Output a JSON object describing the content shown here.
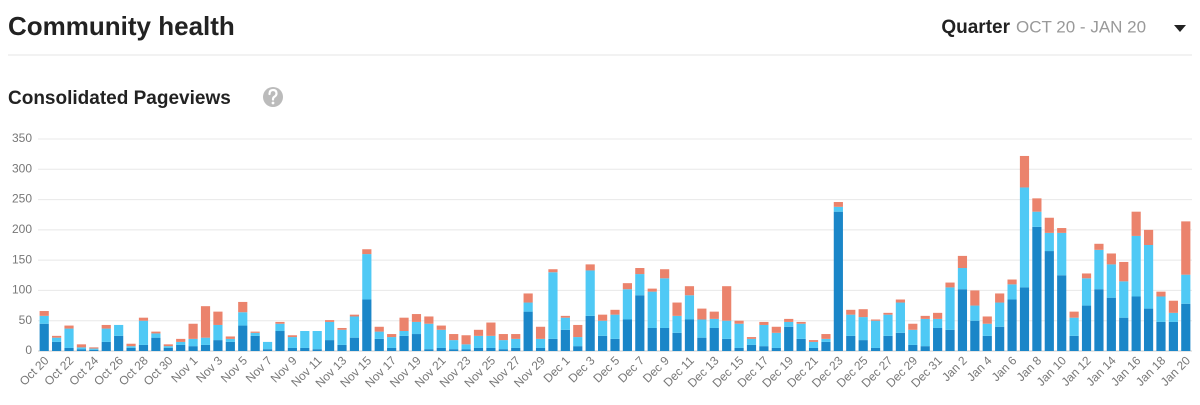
{
  "header": {
    "title": "Community health",
    "period_label": "Quarter",
    "period_range": "OCT 20 - JAN 20"
  },
  "chart_data": {
    "type": "bar",
    "stacked": true,
    "title": "Consolidated Pageviews",
    "categories": [
      "Oct 20",
      null,
      "Oct 22",
      null,
      "Oct 24",
      null,
      "Oct 26",
      null,
      "Oct 28",
      null,
      "Oct 30",
      null,
      "Nov 1",
      null,
      "Nov 3",
      null,
      "Nov 5",
      null,
      "Nov 7",
      null,
      "Nov 9",
      null,
      "Nov 11",
      null,
      "Nov 13",
      null,
      "Nov 15",
      null,
      "Nov 17",
      null,
      "Nov 19",
      null,
      "Nov 21",
      null,
      "Nov 23",
      null,
      "Nov 25",
      null,
      "Nov 27",
      null,
      "Nov 29",
      null,
      "Dec 1",
      null,
      "Dec 3",
      null,
      "Dec 5",
      null,
      "Dec 7",
      null,
      "Dec 9",
      null,
      "Dec 11",
      null,
      "Dec 13",
      null,
      "Dec 15",
      null,
      "Dec 17",
      null,
      "Dec 19",
      null,
      "Dec 21",
      null,
      "Dec 23",
      null,
      "Dec 25",
      null,
      "Dec 27",
      null,
      "Dec 29",
      null,
      "Dec 31",
      null,
      "Jan 2",
      null,
      "Jan 4",
      null,
      "Jan 6",
      null,
      "Jan 8",
      null,
      "Jan 10",
      null,
      "Jan 12",
      null,
      "Jan 14",
      null,
      "Jan 16",
      null,
      "Jan 18",
      null,
      "Jan 20"
    ],
    "series": [
      {
        "color": "#1a86c8",
        "values": [
          45,
          15,
          5,
          3,
          2,
          15,
          25,
          5,
          10,
          22,
          5,
          10,
          8,
          10,
          18,
          15,
          42,
          25,
          3,
          33,
          5,
          5,
          3,
          18,
          10,
          22,
          85,
          20,
          5,
          25,
          28,
          3,
          5,
          3,
          3,
          5,
          5,
          3,
          5,
          65,
          5,
          20,
          35,
          8,
          58,
          25,
          20,
          52,
          92,
          38,
          38,
          30,
          52,
          22,
          38,
          20,
          5,
          10,
          8,
          5,
          40,
          20,
          5,
          15,
          230,
          25,
          18,
          5,
          25,
          30,
          10,
          8,
          38,
          35,
          102,
          50,
          25,
          40,
          85,
          105,
          205,
          165,
          125,
          25,
          75,
          102,
          88,
          55,
          90,
          70,
          48,
          48,
          78
        ]
      },
      {
        "color": "#4fc9f5",
        "values": [
          13,
          7,
          32,
          3,
          2,
          22,
          18,
          3,
          40,
          7,
          3,
          5,
          12,
          12,
          25,
          5,
          22,
          5,
          12,
          12,
          18,
          28,
          30,
          30,
          25,
          35,
          75,
          12,
          18,
          8,
          20,
          42,
          30,
          15,
          8,
          20,
          20,
          15,
          15,
          15,
          15,
          110,
          20,
          15,
          75,
          25,
          40,
          50,
          35,
          60,
          82,
          28,
          40,
          30,
          15,
          30,
          40,
          10,
          35,
          25,
          8,
          25,
          10,
          5,
          8,
          35,
          38,
          45,
          35,
          50,
          25,
          45,
          15,
          70,
          35,
          25,
          20,
          40,
          25,
          165,
          25,
          30,
          70,
          30,
          45,
          65,
          55,
          60,
          100,
          105,
          42,
          15,
          48
        ]
      },
      {
        "color": "#eb836c",
        "values": [
          8,
          3,
          5,
          5,
          2,
          6,
          0,
          4,
          5,
          3,
          3,
          5,
          25,
          52,
          22,
          4,
          17,
          2,
          0,
          3,
          3,
          0,
          0,
          3,
          3,
          3,
          8,
          8,
          5,
          22,
          13,
          12,
          7,
          10,
          15,
          10,
          22,
          10,
          8,
          15,
          20,
          5,
          3,
          20,
          10,
          10,
          8,
          10,
          10,
          5,
          15,
          22,
          15,
          18,
          12,
          57,
          5,
          3,
          5,
          10,
          5,
          3,
          3,
          8,
          8,
          8,
          13,
          2,
          3,
          5,
          10,
          5,
          10,
          8,
          20,
          25,
          12,
          15,
          8,
          52,
          22,
          25,
          8,
          10,
          8,
          10,
          18,
          32,
          40,
          25,
          8,
          20,
          88
        ]
      }
    ],
    "ylim": [
      0,
      350
    ],
    "yticks": [
      0,
      50,
      100,
      150,
      200,
      250,
      300,
      350
    ],
    "grid": true
  }
}
